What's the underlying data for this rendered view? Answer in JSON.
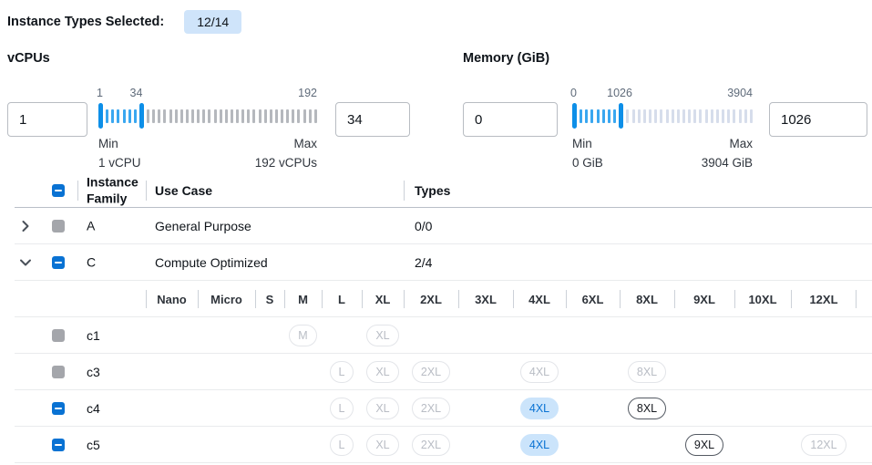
{
  "topbar": {
    "label": "Instance Types Selected:",
    "badge": "12/14"
  },
  "filters": {
    "vcpus": {
      "title": "vCPUs",
      "left_input": "1",
      "right_input": "34",
      "scale_start": "1",
      "scale_mid": "34",
      "scale_end": "192",
      "min_caption": "Min",
      "min_value": "1 vCPU",
      "max_caption": "Max",
      "max_value": "192 vCPUs"
    },
    "memory": {
      "title": "Memory (GiB)",
      "left_input": "0",
      "right_input": "1026",
      "scale_start": "0",
      "scale_mid": "1026",
      "scale_end": "3904",
      "min_caption": "Min",
      "min_value": "0 GiB",
      "max_caption": "Max",
      "max_value": "3904 GiB"
    }
  },
  "table": {
    "columns": {
      "family": "Instance Family",
      "use_case": "Use Case",
      "types": "Types"
    },
    "families": [
      {
        "name": "A",
        "use_case": "General Purpose",
        "types": "0/0",
        "expanded": false,
        "checkbox": "disabled"
      },
      {
        "name": "C",
        "use_case": "Compute Optimized",
        "types": "2/4",
        "expanded": true,
        "checkbox": "indeterminate"
      }
    ],
    "sizes": [
      "Nano",
      "Micro",
      "S",
      "M",
      "L",
      "XL",
      "2XL",
      "3XL",
      "4XL",
      "6XL",
      "8XL",
      "9XL",
      "10XL",
      "12XL"
    ],
    "instances": [
      {
        "name": "c1",
        "checkbox": "disabled",
        "pills": {
          "M": "disabled",
          "XL": "disabled"
        }
      },
      {
        "name": "c3",
        "checkbox": "disabled",
        "pills": {
          "L": "disabled",
          "XL": "disabled",
          "2XL": "disabled",
          "4XL": "disabled",
          "8XL": "disabled"
        }
      },
      {
        "name": "c4",
        "checkbox": "indeterminate",
        "pills": {
          "L": "disabled",
          "XL": "disabled",
          "2XL": "disabled",
          "4XL": "selected",
          "8XL": "enabled"
        }
      },
      {
        "name": "c5",
        "checkbox": "indeterminate",
        "pills": {
          "L": "disabled",
          "XL": "disabled",
          "2XL": "disabled",
          "4XL": "selected",
          "9XL": "enabled",
          "12XL": "disabled"
        }
      }
    ]
  },
  "colors": {
    "accent_blue": "#0972d3",
    "badge_bg": "#cfe4fa",
    "selected_pill_bg": "#cbe4fb",
    "selected_pill_text": "#0972d3",
    "slider_handle": "#0d8fe8",
    "slider_tick_active": "#3aa7f0",
    "slider_tick_inactive_vcpu": "#b5b8bd",
    "slider_tick_inactive_memory": "#d6ddeb",
    "disabled_gray": "#a4a6ab"
  }
}
